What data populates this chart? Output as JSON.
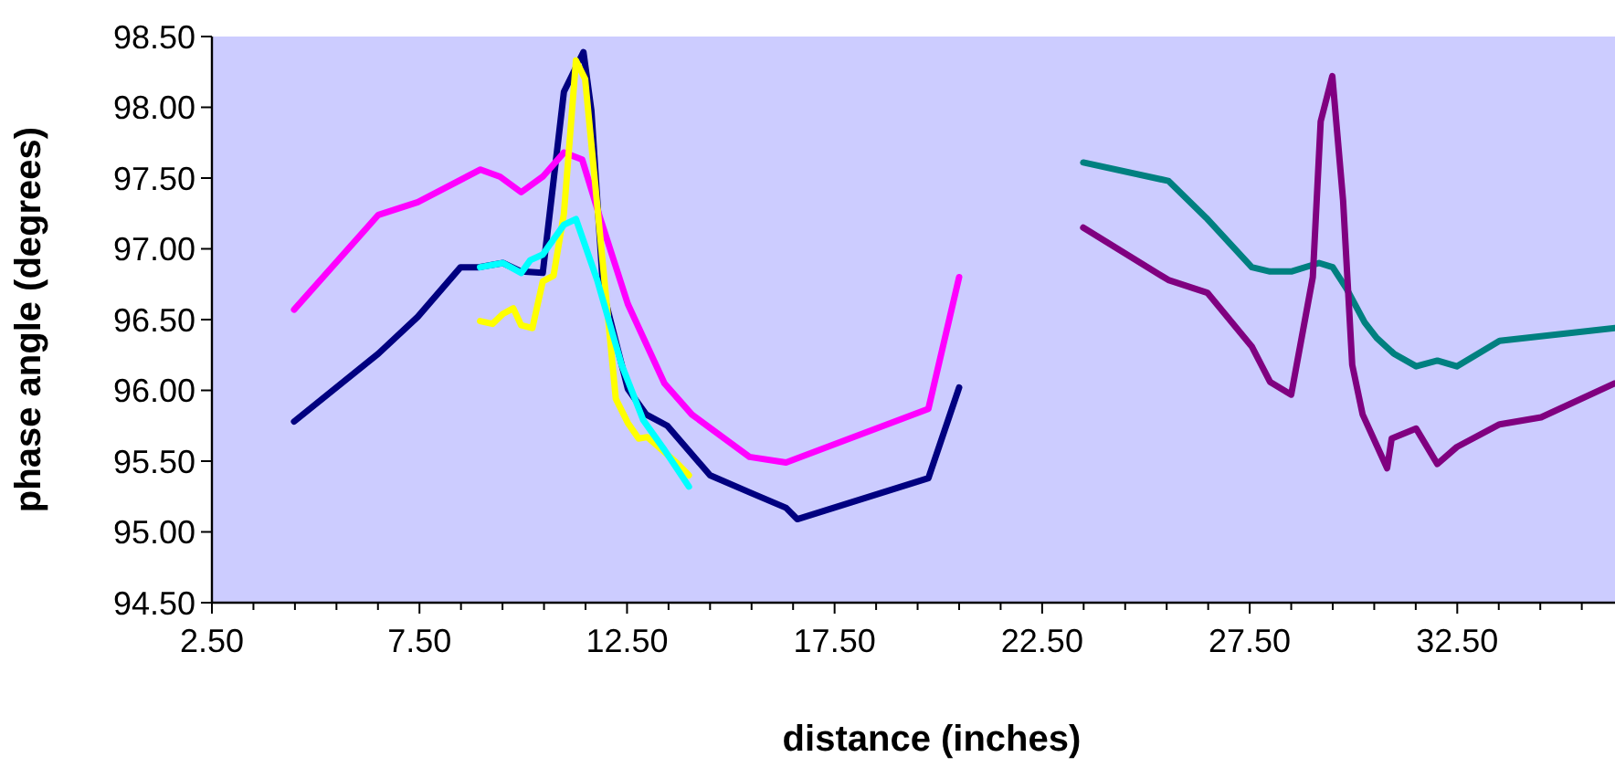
{
  "chart_data": {
    "type": "line",
    "xlabel": "distance (inches)",
    "ylabel": "phase angle (degrees)",
    "xlim": [
      2.5,
      36.3
    ],
    "ylim": [
      94.5,
      98.5
    ],
    "xticks": [
      {
        "value": 2.5,
        "label": "2.50"
      },
      {
        "value": 3.5,
        "label": null
      },
      {
        "value": 4.5,
        "label": null
      },
      {
        "value": 5.5,
        "label": null
      },
      {
        "value": 6.5,
        "label": null
      },
      {
        "value": 7.5,
        "label": "7.50"
      },
      {
        "value": 8.5,
        "label": null
      },
      {
        "value": 9.5,
        "label": null
      },
      {
        "value": 10.5,
        "label": null
      },
      {
        "value": 11.5,
        "label": null
      },
      {
        "value": 12.5,
        "label": "12.50"
      },
      {
        "value": 13.5,
        "label": null
      },
      {
        "value": 14.5,
        "label": null
      },
      {
        "value": 15.5,
        "label": null
      },
      {
        "value": 16.5,
        "label": null
      },
      {
        "value": 17.5,
        "label": "17.50"
      },
      {
        "value": 18.5,
        "label": null
      },
      {
        "value": 19.5,
        "label": null
      },
      {
        "value": 20.5,
        "label": null
      },
      {
        "value": 21.5,
        "label": null
      },
      {
        "value": 22.5,
        "label": "22.50"
      },
      {
        "value": 23.5,
        "label": null
      },
      {
        "value": 24.5,
        "label": null
      },
      {
        "value": 25.5,
        "label": null
      },
      {
        "value": 26.5,
        "label": null
      },
      {
        "value": 27.5,
        "label": "27.50"
      },
      {
        "value": 28.5,
        "label": null
      },
      {
        "value": 29.5,
        "label": null
      },
      {
        "value": 30.5,
        "label": null
      },
      {
        "value": 31.5,
        "label": null
      },
      {
        "value": 32.5,
        "label": "32.50"
      },
      {
        "value": 33.5,
        "label": null
      },
      {
        "value": 34.5,
        "label": null
      },
      {
        "value": 35.5,
        "label": null
      }
    ],
    "yticks": [
      {
        "value": 94.5,
        "label": "94.50"
      },
      {
        "value": 95,
        "label": "95.00"
      },
      {
        "value": 95.5,
        "label": "95.50"
      },
      {
        "value": 96,
        "label": "96.00"
      },
      {
        "value": 96.5,
        "label": "96.50"
      },
      {
        "value": 97,
        "label": "97.00"
      },
      {
        "value": 97.5,
        "label": "97.50"
      },
      {
        "value": 98,
        "label": "98.00"
      },
      {
        "value": 98.5,
        "label": "98.50"
      }
    ],
    "grid": false,
    "marker": "none",
    "line_style": "solid",
    "series": [
      {
        "color": "#000080",
        "x": [
          4.48,
          6.51,
          7.46,
          8.49,
          8.93,
          9.51,
          9.95,
          10.47,
          10.98,
          11.45,
          11.64,
          11.93,
          12.52,
          12.96,
          13.47,
          14.5,
          15.45,
          16.33,
          16.6,
          19.76,
          20.5
        ],
        "values": [
          95.78,
          96.26,
          96.52,
          96.87,
          96.87,
          96.9,
          96.84,
          96.83,
          98.11,
          98.39,
          97.98,
          96.69,
          96.01,
          95.83,
          95.75,
          95.4,
          95.28,
          95.17,
          95.09,
          95.38,
          96.02
        ]
      },
      {
        "color": "#ff00ff",
        "x": [
          4.48,
          6.51,
          7.46,
          8.97,
          9.44,
          9.95,
          10.47,
          10.98,
          11.42,
          11.86,
          12.52,
          13.4,
          14.06,
          15.45,
          16.33,
          19.76,
          20.5
        ],
        "values": [
          96.57,
          97.24,
          97.33,
          97.56,
          97.51,
          97.4,
          97.51,
          97.68,
          97.63,
          97.21,
          96.61,
          96.05,
          95.83,
          95.53,
          95.49,
          95.87,
          96.8
        ]
      },
      {
        "color": "#ffff00",
        "x": [
          8.96,
          9.26,
          9.51,
          9.76,
          9.95,
          10.22,
          10.47,
          10.73,
          10.98,
          11.27,
          11.49,
          12.23,
          12.52,
          12.78,
          12.99,
          13.69,
          13.99
        ],
        "values": [
          96.49,
          96.47,
          96.54,
          96.58,
          96.46,
          96.44,
          96.77,
          96.81,
          97.25,
          98.33,
          98.2,
          95.94,
          95.77,
          95.66,
          95.67,
          95.49,
          95.4
        ]
      },
      {
        "color": "#00ffff",
        "x": [
          8.96,
          9.51,
          9.95,
          10.17,
          10.47,
          10.98,
          11.27,
          11.78,
          12.37,
          12.89,
          13.4,
          13.99
        ],
        "values": [
          96.87,
          96.9,
          96.83,
          96.92,
          96.96,
          97.17,
          97.21,
          96.78,
          96.18,
          95.79,
          95.58,
          95.32
        ]
      },
      {
        "color": "#008080",
        "x": [
          23.49,
          25.54,
          26.45,
          27.55,
          27.99,
          28.5,
          29.17,
          29.5,
          29.83,
          30.27,
          30.56,
          30.97,
          31.51,
          32.02,
          32.49,
          33.52,
          36.3
        ],
        "values": [
          97.61,
          97.48,
          97.22,
          96.87,
          96.84,
          96.84,
          96.9,
          96.87,
          96.72,
          96.48,
          96.37,
          96.26,
          96.17,
          96.21,
          96.17,
          96.35,
          96.44
        ]
      },
      {
        "color": "#800080",
        "x": [
          23.49,
          25.54,
          26.48,
          27.55,
          27.99,
          28.5,
          29.02,
          29.21,
          29.49,
          29.75,
          29.97,
          30.22,
          30.81,
          30.92,
          31.51,
          32.02,
          32.49,
          33.52,
          34.52,
          36.3
        ],
        "values": [
          97.15,
          96.78,
          96.69,
          96.31,
          96.06,
          95.97,
          96.8,
          97.9,
          98.22,
          97.34,
          96.18,
          95.83,
          95.45,
          95.66,
          95.73,
          95.48,
          95.6,
          95.76,
          95.81,
          96.05
        ]
      }
    ]
  }
}
